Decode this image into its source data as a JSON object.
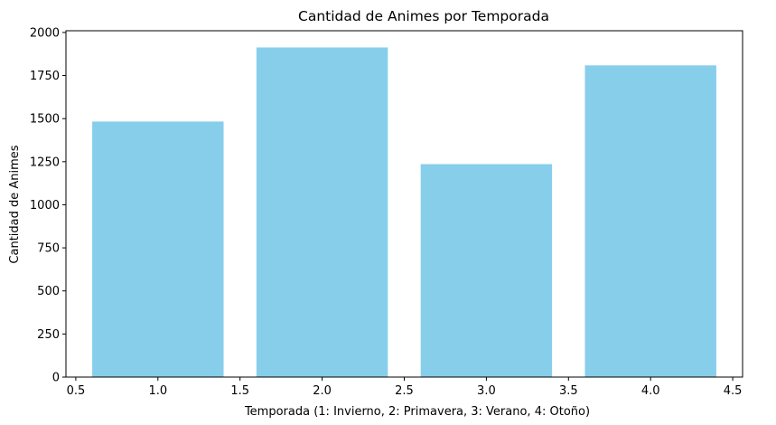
{
  "chart_data": {
    "type": "bar",
    "title": "Cantidad de Animes por Temporada",
    "xlabel": "Temporada (1: Invierno, 2: Primavera, 3: Verano, 4: Otoño)",
    "ylabel": "Cantidad de Animes",
    "x": [
      1,
      2,
      3,
      4
    ],
    "values": [
      1483,
      1913,
      1236,
      1809
    ],
    "bar_width": 0.8,
    "xlim": [
      0.44,
      4.56
    ],
    "ylim": [
      0,
      2010
    ],
    "xticks": [
      0.5,
      1.0,
      1.5,
      2.0,
      2.5,
      3.0,
      3.5,
      4.0,
      4.5
    ],
    "xtick_labels": [
      "0.5",
      "1.0",
      "1.5",
      "2.0",
      "2.5",
      "3.0",
      "3.5",
      "4.0",
      "4.5"
    ],
    "yticks": [
      0,
      250,
      500,
      750,
      1000,
      1250,
      1500,
      1750,
      2000
    ],
    "ytick_labels": [
      "0",
      "250",
      "500",
      "750",
      "1000",
      "1250",
      "1500",
      "1750",
      "2000"
    ],
    "grid": false,
    "bar_color": "#87ceeb",
    "axis_color": "#000000"
  }
}
